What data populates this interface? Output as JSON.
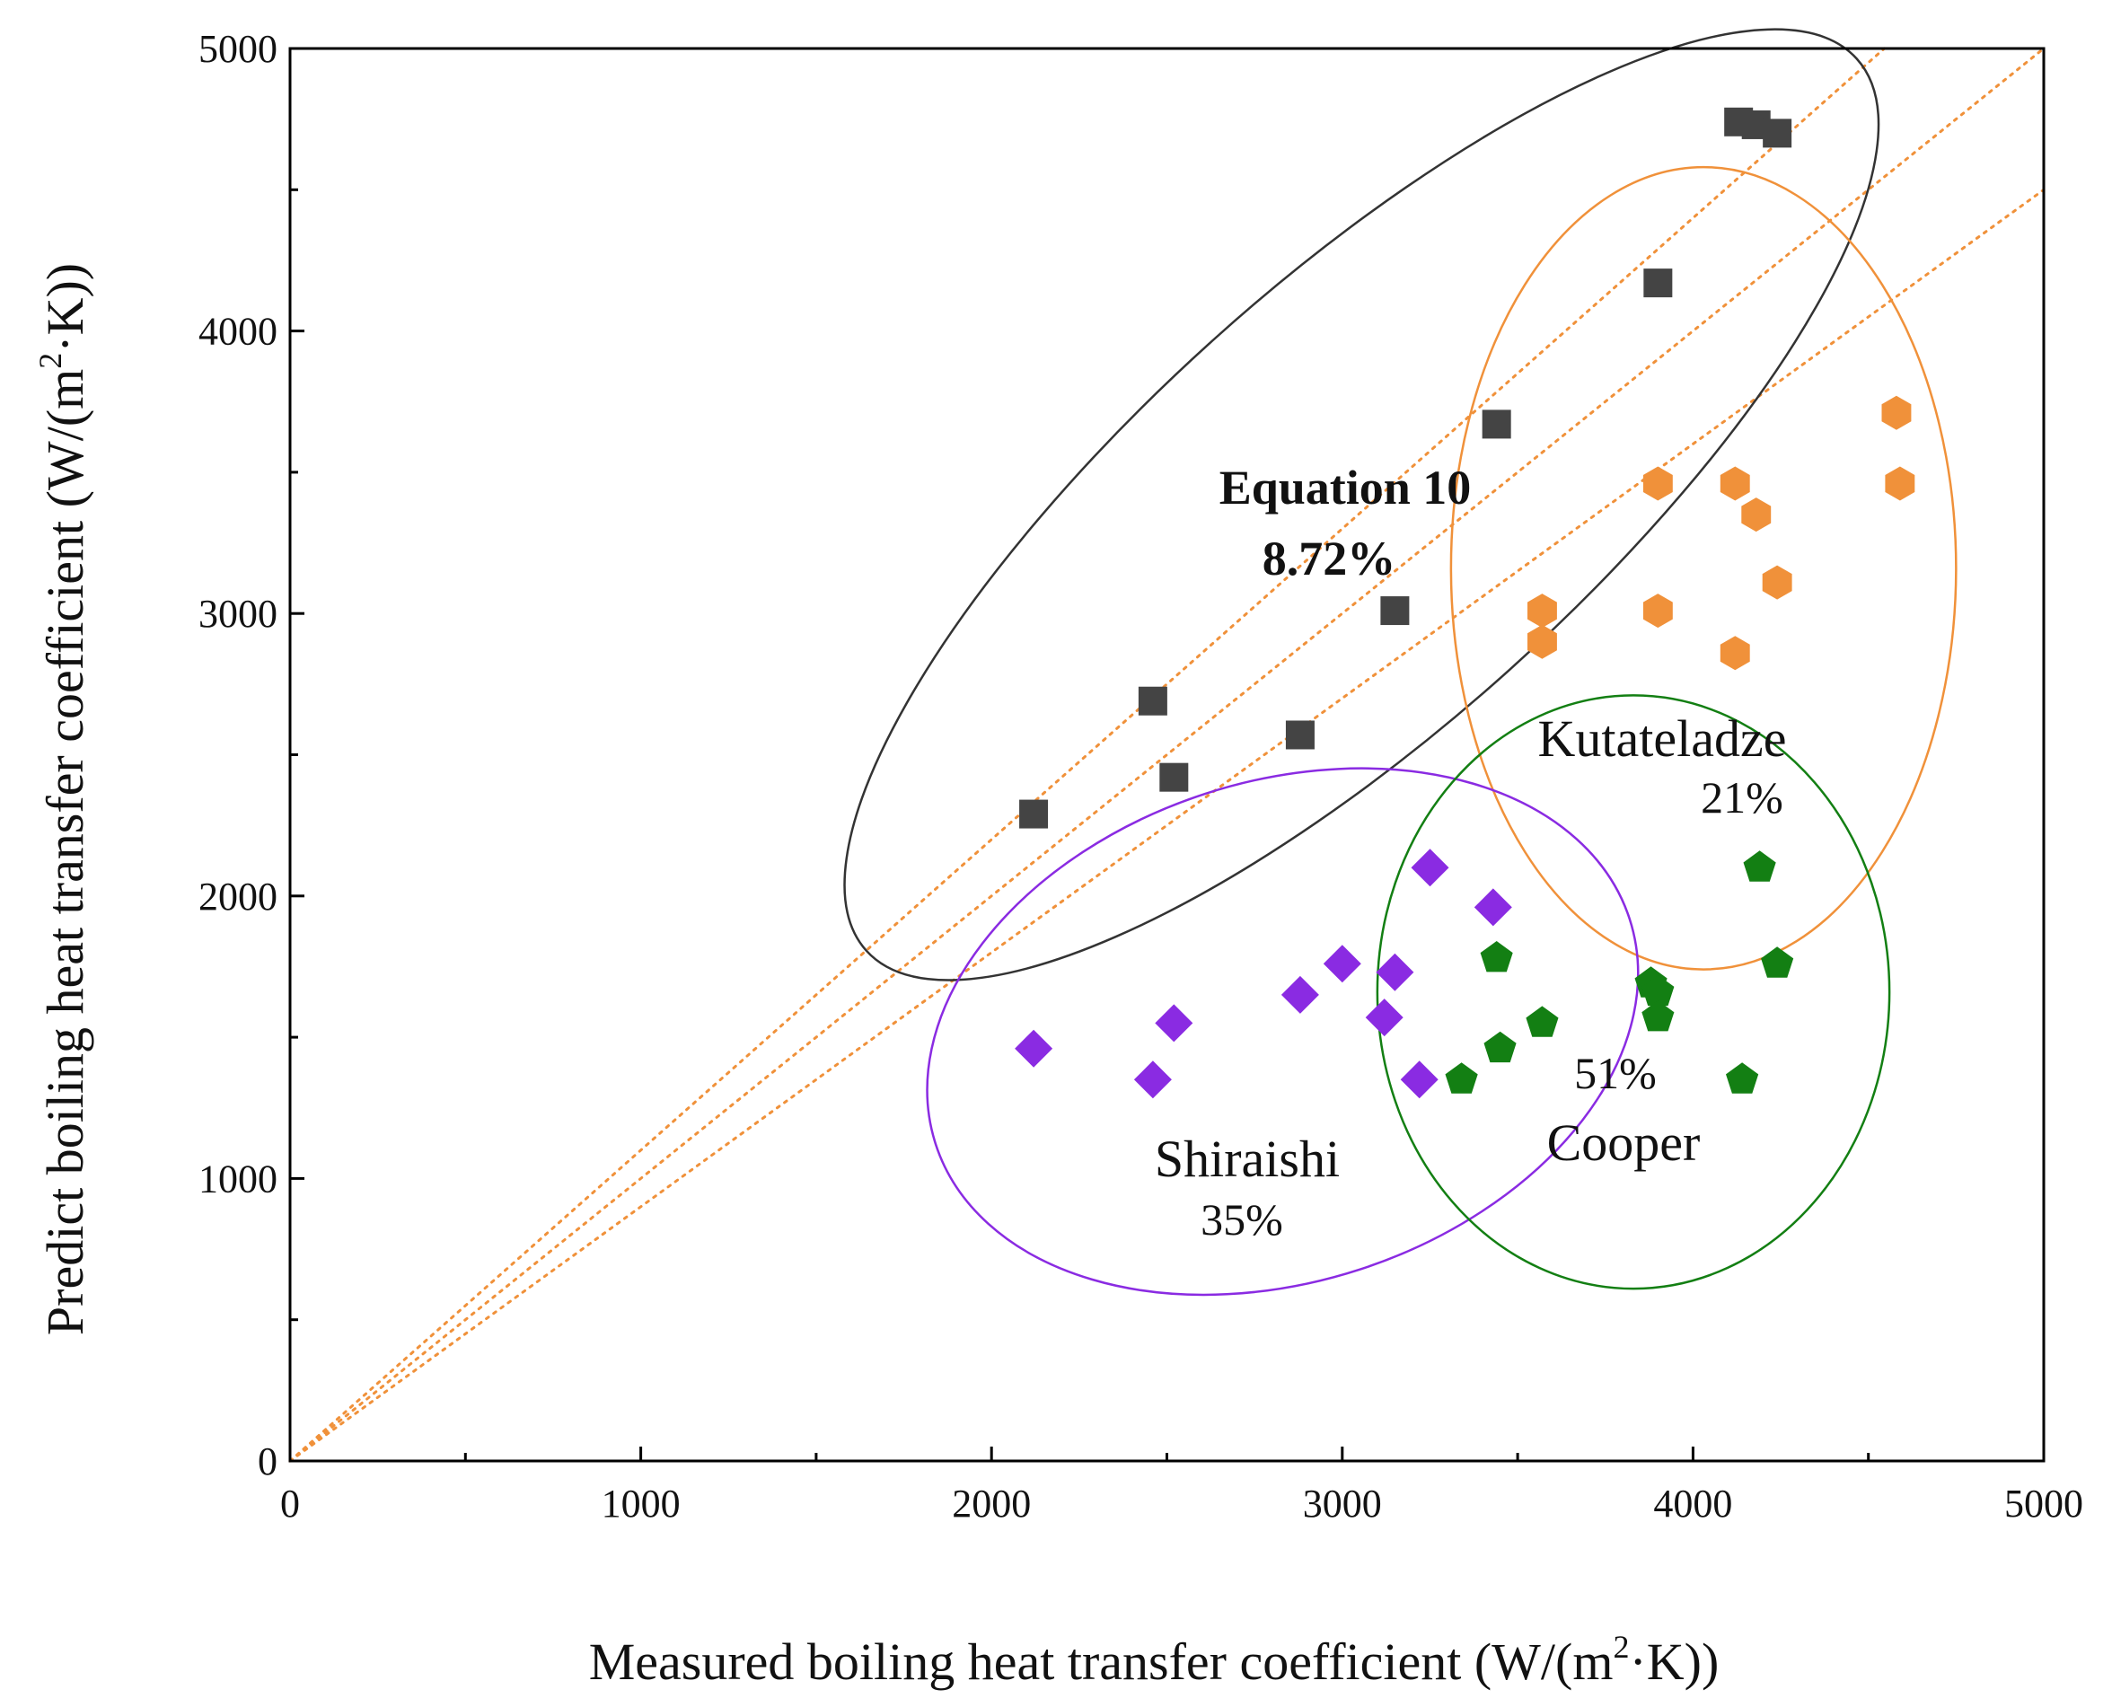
{
  "chart_data": {
    "type": "scatter",
    "xlabel_main": "Measured boiling heat transfer coefficient (W/(m",
    "xlabel_sup": "2",
    "xlabel_end": "·K))",
    "ylabel_main": "Predict boiling heat transfer coefficient (W/(m",
    "ylabel_sup": "2",
    "ylabel_end": "·K))",
    "xlim": [
      0,
      5000
    ],
    "ylim": [
      0,
      5000
    ],
    "xticks": [
      0,
      1000,
      2000,
      3000,
      4000,
      5000
    ],
    "yticks": [
      0,
      1000,
      2000,
      3000,
      4000,
      5000
    ],
    "x_tick_labels": [
      "0",
      "1000",
      "2000",
      "3000",
      "4000",
      "5000"
    ],
    "y_tick_labels": [
      "0",
      "1000",
      "2000",
      "3000",
      "4000",
      "5000"
    ],
    "minor_tick_step": 500,
    "reference_lines": [
      {
        "slope": 1.1
      },
      {
        "slope": 1.0
      },
      {
        "slope": 0.9
      }
    ],
    "series": [
      {
        "name": "Equation 10",
        "error": "8.72%",
        "marker": "square",
        "color": "#444444",
        "x": [
          2120,
          2460,
          2520,
          2880,
          3150,
          3440,
          3900,
          4130,
          4180,
          4240
        ],
        "y": [
          2290,
          2690,
          2420,
          2570,
          3010,
          3670,
          4170,
          4740,
          4730,
          4700
        ]
      },
      {
        "name": "Kutateladze",
        "error": "21%",
        "marker": "hexagon",
        "color": "#f0913a",
        "x": [
          3570,
          3570,
          3900,
          3900,
          4120,
          4120,
          4180,
          4240,
          4580,
          4590
        ],
        "y": [
          2900,
          3010,
          3010,
          3460,
          3460,
          2860,
          3350,
          3110,
          3710,
          3460
        ]
      },
      {
        "name": "Shiraishi",
        "error": "35%",
        "marker": "diamond",
        "color": "#8a2be2",
        "x": [
          2120,
          2460,
          2520,
          2880,
          3000,
          3120,
          3150,
          3220,
          3250,
          3430
        ],
        "y": [
          1460,
          1350,
          1550,
          1650,
          1760,
          1570,
          1730,
          1350,
          2100,
          1960
        ]
      },
      {
        "name": "Cooper",
        "error": "51%",
        "marker": "pentagon",
        "color": "#137f13",
        "x": [
          3340,
          3440,
          3450,
          3570,
          3880,
          3900,
          3900,
          4140,
          4190,
          4240
        ],
        "y": [
          1350,
          1780,
          1460,
          1550,
          1690,
          1660,
          1570,
          1350,
          2100,
          1760
        ]
      }
    ],
    "groups": [
      {
        "name": "Equation 10",
        "cx": 3055,
        "cy": 3385,
        "rx": 1900,
        "ry": 400,
        "angle_deg": 42,
        "color": "#333333"
      },
      {
        "name": "Kutateladze",
        "cx": 4030,
        "cy": 3160,
        "rx": 720,
        "ry": 1420,
        "angle_deg": 0,
        "color": "#f0913a"
      },
      {
        "name": "Shiraishi",
        "cx": 2830,
        "cy": 1520,
        "rx": 1040,
        "ry": 670,
        "angle_deg": 18,
        "color": "#8a2be2"
      },
      {
        "name": "Cooper",
        "cx": 3830,
        "cy": 1660,
        "rx": 730,
        "ry": 1050,
        "angle_deg": 0,
        "color": "#137f13"
      }
    ],
    "labels": {
      "equation_name": "Equation 10",
      "equation_error": "8.72%",
      "kutateladze_name": "Kutateladze",
      "kutateladze_error": "21%",
      "shiraishi_name": "Shiraishi",
      "shiraishi_error": "35%",
      "cooper_name": "Cooper",
      "cooper_error": "51%"
    }
  }
}
